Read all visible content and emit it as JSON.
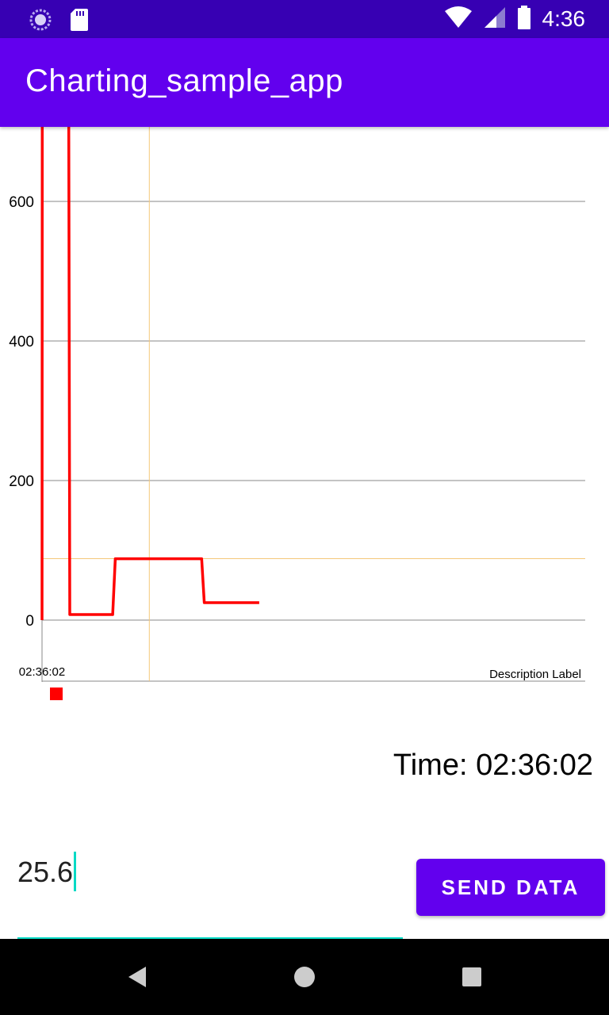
{
  "status_bar": {
    "time": "4:36",
    "icons": [
      "loading-icon",
      "sd-card-icon",
      "wifi-icon",
      "signal-icon",
      "battery-icon"
    ]
  },
  "app_bar": {
    "title": "Charting_sample_app"
  },
  "chart_data": {
    "type": "line",
    "x_tick_labels": [
      "02:36:02"
    ],
    "y_ticks": [
      0,
      200,
      400,
      600
    ],
    "ylim": [
      0,
      715
    ],
    "description": "Description Label",
    "series": [
      {
        "color": "#ff0000",
        "points": [
          [
            0,
            0
          ],
          [
            0.05,
            720
          ],
          [
            5.1,
            720
          ],
          [
            5.3,
            8
          ],
          [
            13.5,
            8
          ],
          [
            14,
            88
          ],
          [
            30.5,
            88
          ],
          [
            31,
            25
          ],
          [
            41.5,
            25
          ]
        ]
      }
    ],
    "highlight": {
      "color": "#f5c87a",
      "x": 20.5,
      "y": 88
    },
    "legend_color": "#ff0000",
    "grid": true
  },
  "time_display": "Time: 02:36:02",
  "input": {
    "value": "25.6"
  },
  "send_button": {
    "label": "SEND DATA"
  },
  "colors": {
    "primary": "#6200ee",
    "primary_dark": "#3700b3",
    "accent": "#03dac5"
  },
  "nav_bar": {
    "icons": [
      "back-icon",
      "home-icon",
      "recents-icon"
    ]
  }
}
